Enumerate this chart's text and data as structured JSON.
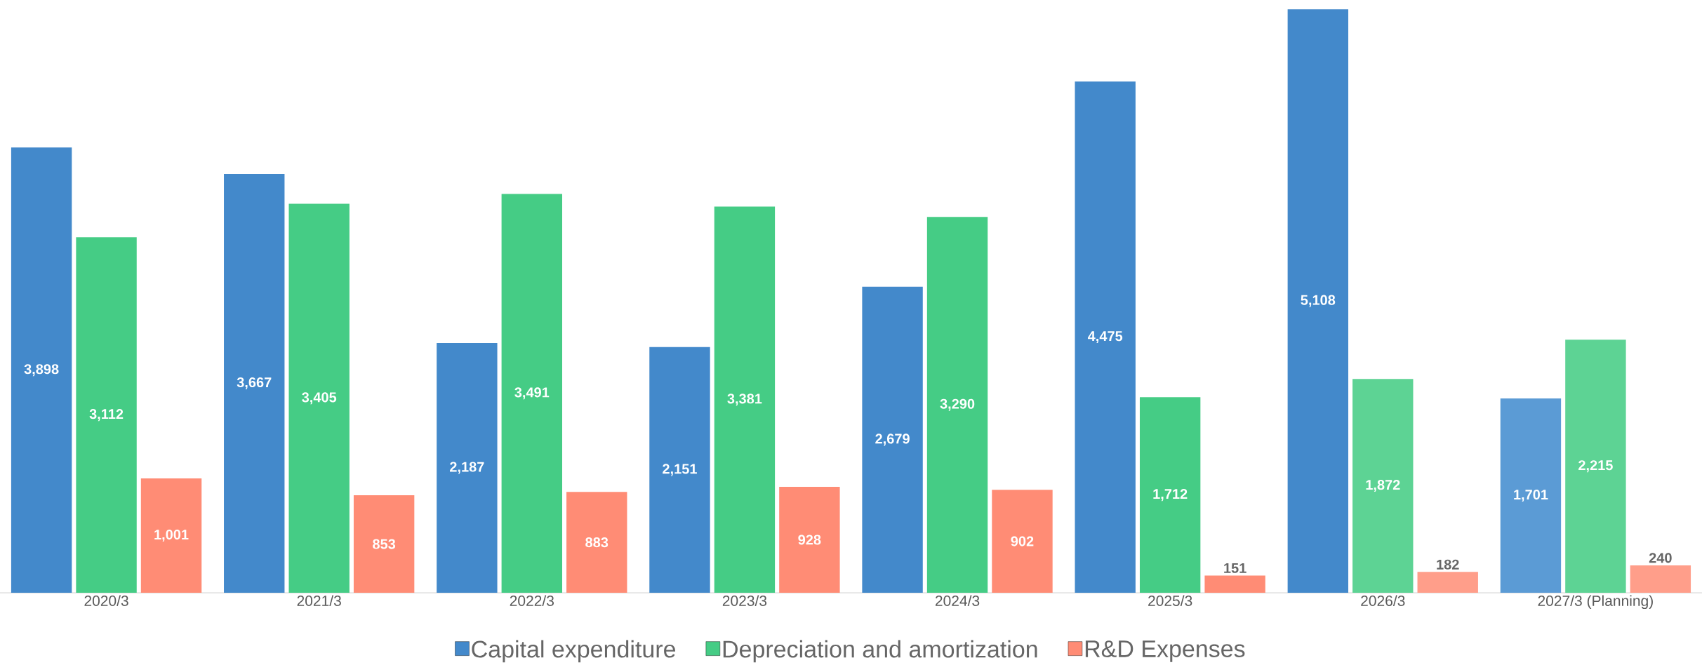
{
  "chart_data": {
    "type": "bar",
    "categories": [
      "2020/3",
      "2021/3",
      "2022/3",
      "2023/3",
      "2024/3",
      "2025/3",
      "2026/3",
      "2027/3 (Planning)"
    ],
    "series": [
      {
        "name": "Capital expenditure",
        "color": "#4389cb",
        "colors": [
          "#4389cb",
          "#4389cb",
          "#4389cb",
          "#4389cb",
          "#4389cb",
          "#4389cb",
          "#4389cb",
          "#5b9bd5"
        ],
        "values": [
          3898,
          3667,
          2187,
          2151,
          2679,
          4475,
          5108,
          1701
        ],
        "value_labels": [
          "3,898",
          "3,667",
          "2,187",
          "2,151",
          "2,679",
          "4,475",
          "5,108",
          "1,701"
        ]
      },
      {
        "name": "Depreciation and amortization",
        "color": "#45cc85",
        "colors": [
          "#45cc85",
          "#45cc85",
          "#45cc85",
          "#45cc85",
          "#45cc85",
          "#45cc85",
          "#5dd394",
          "#5dd394"
        ],
        "values": [
          3112,
          3405,
          3491,
          3381,
          3290,
          1712,
          1872,
          2215
        ],
        "value_labels": [
          "3,112",
          "3,405",
          "3,491",
          "3,381",
          "3,290",
          "1,712",
          "1,872",
          "2,215"
        ]
      },
      {
        "name": "R&D Expenses",
        "color": "#ff8c75",
        "colors": [
          "#ff8c75",
          "#ff8c75",
          "#ff8c75",
          "#ff8c75",
          "#ff8c75",
          "#ff8c75",
          "#ff9e8a",
          "#ff9e8a"
        ],
        "values": [
          1001,
          853,
          883,
          928,
          902,
          151,
          182,
          240
        ],
        "value_labels": [
          "1,001",
          "853",
          "883",
          "928",
          "902",
          "151",
          "182",
          "240"
        ]
      }
    ],
    "legend": "bottom"
  }
}
